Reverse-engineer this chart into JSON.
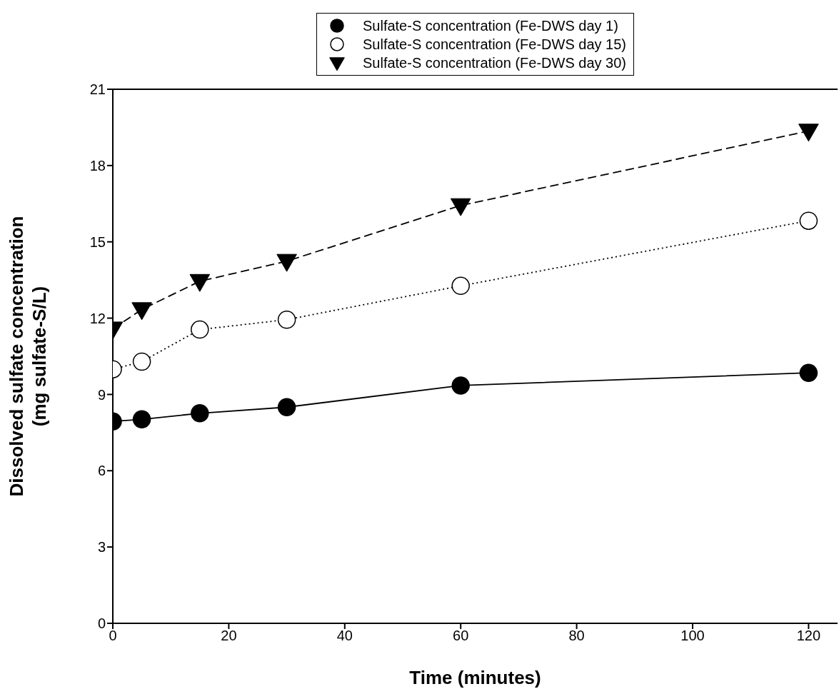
{
  "chart_data": {
    "type": "line",
    "xlabel": "Time (minutes)",
    "ylabel": "Dissolved sulfate concentration\n(mg sulfate-S/L)",
    "x": [
      0,
      5,
      15,
      30,
      60,
      120
    ],
    "series": [
      {
        "name": "Sulfate-S concentration (Fe-DWS day 1)",
        "color": "#000000",
        "marker": "circle",
        "line_style": "solid",
        "values": [
          7.94,
          8.02,
          8.26,
          8.5,
          9.35,
          9.85
        ]
      },
      {
        "name": "Sulfate-S concentration (Fe-DWS day 15)",
        "color": "#000000",
        "marker": "circle",
        "line_style": "dotted",
        "values": [
          9.99,
          10.29,
          11.55,
          11.94,
          13.27,
          15.83
        ]
      },
      {
        "name": "Sulfate-S concentration (Fe-DWS day 30)",
        "color": "#000000",
        "marker": "triangle",
        "line_style": "dashed",
        "values": [
          11.58,
          12.34,
          13.45,
          14.24,
          16.43,
          19.36
        ]
      }
    ],
    "xlim": [
      0,
      125
    ],
    "xticks": [
      0,
      20,
      40,
      60,
      80,
      100,
      120
    ],
    "ylim": [
      0,
      21
    ],
    "yticks": [
      0,
      3,
      6,
      9,
      12,
      15,
      18,
      21
    ],
    "grid": false,
    "legend": "top"
  }
}
